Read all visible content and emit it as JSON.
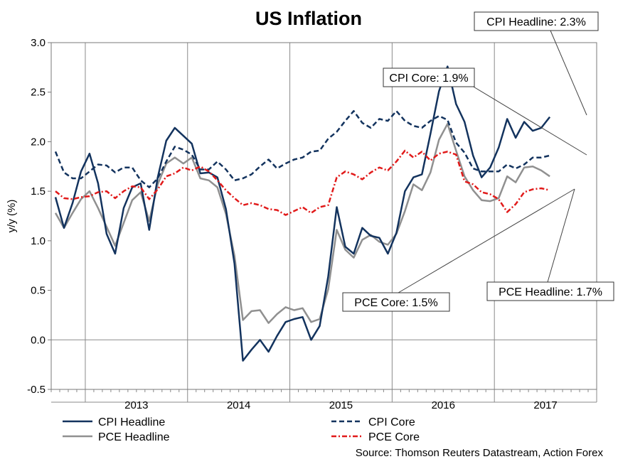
{
  "chart_data": {
    "type": "line",
    "title": "US Inflation",
    "ylabel": "y/y (%)",
    "xlabel": "",
    "ylim": [
      -0.5,
      3.0
    ],
    "yticks": [
      "-0.5",
      "0.0",
      "0.5",
      "1.0",
      "1.5",
      "2.0",
      "2.5",
      "3.0"
    ],
    "ytick_values": [
      -0.5,
      0.0,
      0.5,
      1.0,
      1.5,
      2.0,
      2.5,
      3.0
    ],
    "x_start": "2012-09",
    "x_end": "2017-12",
    "year_labels": [
      "2013",
      "2014",
      "2015",
      "2016",
      "2017"
    ],
    "source": "Source: Thomson Reuters Datastream, Action Forex",
    "series": [
      {
        "name": "CPI Headline",
        "color": "#13335e",
        "style": "solid",
        "values": [
          1.44,
          1.13,
          1.38,
          1.7,
          1.88,
          1.58,
          1.07,
          0.87,
          1.33,
          1.54,
          1.58,
          1.11,
          1.64,
          2.01,
          2.14,
          2.06,
          1.98,
          1.68,
          1.69,
          1.64,
          1.32,
          0.77,
          -0.21,
          -0.1,
          0.0,
          -0.12,
          0.04,
          0.18,
          0.21,
          0.23,
          0.0,
          0.14,
          0.64,
          1.34,
          0.94,
          0.87,
          1.13,
          1.05,
          1.03,
          0.87,
          1.08,
          1.5,
          1.64,
          1.67,
          2.08,
          2.51,
          2.76,
          2.38,
          2.2,
          1.86,
          1.64,
          1.74,
          1.94,
          2.23,
          2.04,
          2.2,
          2.11,
          2.14,
          2.25
        ]
      },
      {
        "name": "CPI Core",
        "color": "#13335e",
        "style": "dashed",
        "values": [
          1.9,
          1.69,
          1.63,
          1.63,
          1.7,
          1.77,
          1.76,
          1.69,
          1.74,
          1.74,
          1.61,
          1.54,
          1.63,
          1.8,
          1.95,
          1.92,
          1.87,
          1.72,
          1.72,
          1.8,
          1.72,
          1.61,
          1.63,
          1.67,
          1.75,
          1.82,
          1.73,
          1.78,
          1.82,
          1.84,
          1.9,
          1.91,
          2.03,
          2.1,
          2.21,
          2.31,
          2.19,
          2.14,
          2.23,
          2.21,
          2.31,
          2.21,
          2.16,
          2.14,
          2.21,
          2.26,
          2.22,
          1.99,
          1.89,
          1.73,
          1.7,
          1.7,
          1.7,
          1.77,
          1.73,
          1.77,
          1.84,
          1.84,
          1.86
        ]
      },
      {
        "name": "PCE Headline",
        "color": "#909090",
        "style": "solid",
        "values": [
          1.28,
          1.13,
          1.28,
          1.42,
          1.5,
          1.33,
          1.14,
          0.95,
          1.18,
          1.41,
          1.49,
          1.2,
          1.57,
          1.78,
          1.84,
          1.78,
          1.84,
          1.63,
          1.61,
          1.54,
          1.27,
          0.85,
          0.2,
          0.29,
          0.3,
          0.17,
          0.26,
          0.33,
          0.3,
          0.32,
          0.18,
          0.21,
          0.51,
          1.11,
          0.91,
          0.83,
          1.01,
          1.06,
          0.99,
          0.96,
          1.07,
          1.3,
          1.57,
          1.51,
          1.69,
          2.02,
          2.18,
          1.91,
          1.65,
          1.51,
          1.41,
          1.4,
          1.43,
          1.65,
          1.59,
          1.74,
          1.75,
          1.71,
          1.65
        ]
      },
      {
        "name": "PCE Core",
        "color": "#e11a1a",
        "style": "dashdot",
        "values": [
          1.5,
          1.43,
          1.42,
          1.44,
          1.45,
          1.49,
          1.5,
          1.43,
          1.5,
          1.55,
          1.54,
          1.42,
          1.52,
          1.65,
          1.68,
          1.74,
          1.71,
          1.75,
          1.7,
          1.61,
          1.51,
          1.43,
          1.36,
          1.38,
          1.36,
          1.32,
          1.31,
          1.26,
          1.3,
          1.34,
          1.28,
          1.34,
          1.36,
          1.64,
          1.7,
          1.67,
          1.62,
          1.69,
          1.74,
          1.71,
          1.8,
          1.91,
          1.84,
          1.9,
          1.81,
          1.88,
          1.9,
          1.87,
          1.6,
          1.57,
          1.49,
          1.47,
          1.42,
          1.29,
          1.37,
          1.49,
          1.52,
          1.53,
          1.51
        ]
      }
    ],
    "legend": {
      "placement": "bottom",
      "entries": [
        "CPI Headline",
        "PCE Headline",
        "CPI Core",
        "PCE Core"
      ]
    },
    "annotations": [
      {
        "text": "CPI Headline: 2.3%",
        "series": "CPI Headline"
      },
      {
        "text": "CPI Core: 1.9%",
        "series": "CPI Core"
      },
      {
        "text": "PCE Core: 1.5%",
        "series": "PCE Core"
      },
      {
        "text": "PCE Headline: 1.7%",
        "series": "PCE Headline"
      }
    ]
  }
}
